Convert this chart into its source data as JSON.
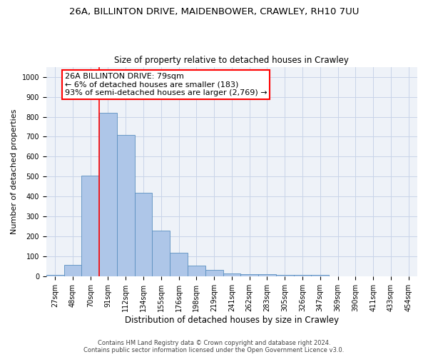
{
  "title_line1": "26A, BILLINTON DRIVE, MAIDENBOWER, CRAWLEY, RH10 7UU",
  "title_line2": "Size of property relative to detached houses in Crawley",
  "xlabel": "Distribution of detached houses by size in Crawley",
  "ylabel": "Number of detached properties",
  "bar_labels": [
    "27sqm",
    "48sqm",
    "70sqm",
    "91sqm",
    "112sqm",
    "134sqm",
    "155sqm",
    "176sqm",
    "198sqm",
    "219sqm",
    "241sqm",
    "262sqm",
    "283sqm",
    "305sqm",
    "326sqm",
    "347sqm",
    "369sqm",
    "390sqm",
    "411sqm",
    "433sqm",
    "454sqm"
  ],
  "bar_values": [
    8,
    58,
    505,
    820,
    710,
    418,
    230,
    118,
    55,
    33,
    15,
    13,
    13,
    10,
    7,
    10,
    0,
    0,
    0,
    0,
    0
  ],
  "bar_color": "#aec6e8",
  "bar_edge_color": "#5a8fc0",
  "bar_width": 1.0,
  "vline_x": 2.5,
  "annotation_text": "26A BILLINTON DRIVE: 79sqm\n← 6% of detached houses are smaller (183)\n93% of semi-detached houses are larger (2,769) →",
  "annotation_box_color": "white",
  "annotation_box_edge": "red",
  "vline_color": "red",
  "ylim": [
    0,
    1050
  ],
  "yticks": [
    0,
    100,
    200,
    300,
    400,
    500,
    600,
    700,
    800,
    900,
    1000
  ],
  "footer_line1": "Contains HM Land Registry data © Crown copyright and database right 2024.",
  "footer_line2": "Contains public sector information licensed under the Open Government Licence v3.0.",
  "bg_color": "#eef2f8",
  "grid_color": "#c8d4e8",
  "title1_fontsize": 9.5,
  "title2_fontsize": 8.5,
  "xlabel_fontsize": 8.5,
  "ylabel_fontsize": 8,
  "tick_fontsize": 7,
  "annot_fontsize": 8,
  "footer_fontsize": 6
}
